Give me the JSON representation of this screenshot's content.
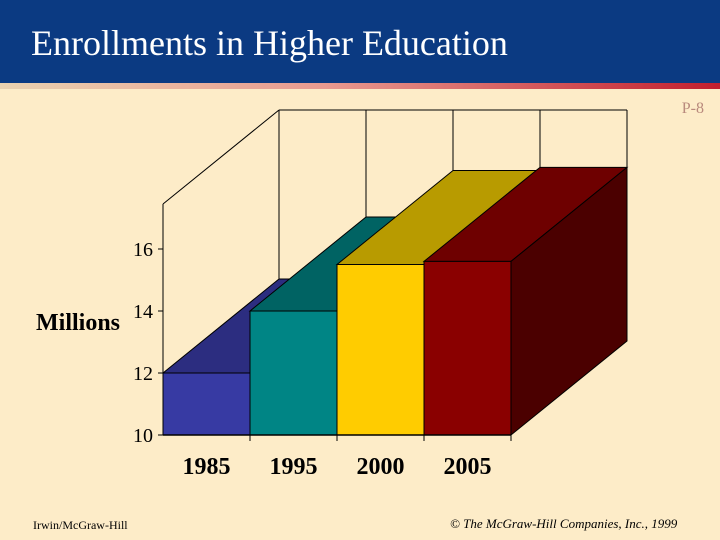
{
  "slide": {
    "title": "Enrollments in Higher Education",
    "page": "P-8",
    "footer_left": "Irwin/McGraw-Hill",
    "footer_right": "© The McGraw-Hill Companies, Inc., 1999"
  },
  "chart_data": {
    "type": "bar",
    "style": "3d-stepped",
    "title": "Enrollments in Higher Education",
    "xlabel": "",
    "ylabel": "Millions",
    "categories": [
      "1985",
      "1995",
      "2000",
      "2005"
    ],
    "values": [
      12.0,
      14.0,
      15.5,
      15.6
    ],
    "ylim": [
      10,
      16
    ],
    "yticks": [
      10,
      12,
      14,
      16
    ],
    "grid": false,
    "legend": "none",
    "colors": [
      {
        "front": "#373aa3",
        "top": "#2c2d80"
      },
      {
        "front": "#008585",
        "top": "#006363"
      },
      {
        "front": "#ffcc00",
        "top": "#b89b00"
      },
      {
        "front": "#8a0000",
        "top": "#6e0000",
        "side": "#4b0000"
      }
    ]
  }
}
